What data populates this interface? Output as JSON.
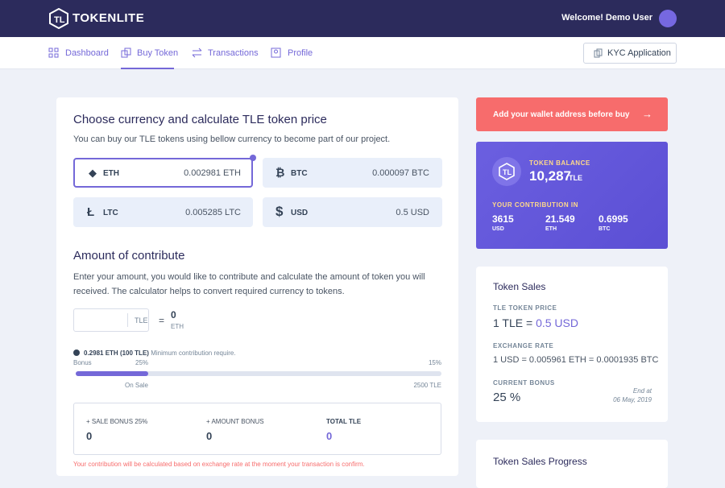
{
  "header": {
    "logo": "TOKENLITE",
    "welcome": "Welcome! Demo User"
  },
  "nav": {
    "items": [
      "Dashboard",
      "Buy Token",
      "Transactions",
      "Profile"
    ],
    "kyc": "KYC Application"
  },
  "calculator": {
    "title": "Choose currency and calculate TLE token price",
    "description": "You can buy our TLE tokens using bellow currency to become part of our project.",
    "currencies": [
      {
        "name": "ETH",
        "price": "0.002981 ETH"
      },
      {
        "name": "BTC",
        "price": "0.000097 BTC"
      },
      {
        "name": "LTC",
        "price": "0.005285 LTC"
      },
      {
        "name": "USD",
        "price": "0.5 USD"
      }
    ],
    "amount_title": "Amount of contribute",
    "amount_description": "Enter your amount, you would like to contribute and calculate the amount of token you will received. The calculator helps to convert required currency to tokens.",
    "input_unit": "TLE",
    "equals": "=",
    "result": "0",
    "result_unit": "ETH",
    "note": {
      "amount": "0.2981 ETH",
      "tokens": "(100 TLE)",
      "text": "Minimum contribution require."
    },
    "progress": {
      "bonus_label": "Bonus",
      "bonus_start": "25%",
      "bonus_end": "15%",
      "sale_label": "On Sale",
      "sale_amount": "2500 TLE"
    },
    "bonus": [
      {
        "label": "+ SALE BONUS 25%",
        "value": "0"
      },
      {
        "label": "+ AMOUNT BONUS",
        "value": "0"
      },
      {
        "label": "TOTAL TLE",
        "value": "0"
      }
    ],
    "warning": "Your contribution will be calculated based on exchange rate at the moment your transaction is confirm."
  },
  "wallet_button": "Add your wallet address before buy",
  "balance": {
    "label": "TOKEN BALANCE",
    "amount": "10,287",
    "unit": "TLE",
    "contribution_label": "YOUR CONTRIBUTION IN",
    "contributions": [
      {
        "value": "3615",
        "unit": "USD"
      },
      {
        "value": "21.549",
        "unit": "ETH"
      },
      {
        "value": "0.6995",
        "unit": "BTC"
      }
    ]
  },
  "token_sales": {
    "title": "Token Sales",
    "price_label": "TLE TOKEN PRICE",
    "price_prefix": "1 TLE =",
    "price": "0.5 USD",
    "rate_label": "EXCHANGE RATE",
    "rate": "1 USD = 0.005961 ETH = 0.0001935 BTC",
    "bonus_label": "CURRENT BONUS",
    "bonus": "25 %",
    "end_label": "End at",
    "end_date": "06 May, 2019"
  },
  "progress_card": {
    "title": "Token Sales Progress"
  }
}
